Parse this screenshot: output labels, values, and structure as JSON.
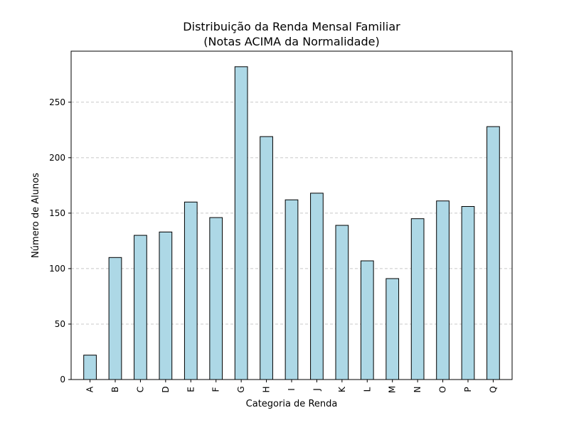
{
  "chart_data": {
    "type": "bar",
    "title": "Distribuição da Renda Mensal Familiar",
    "subtitle": "(Notas ACIMA da Normalidade)",
    "xlabel": "Categoria de Renda",
    "ylabel": "Número de Alunos",
    "categories": [
      "A",
      "B",
      "C",
      "D",
      "E",
      "F",
      "G",
      "H",
      "I",
      "J",
      "K",
      "L",
      "M",
      "N",
      "O",
      "P",
      "Q"
    ],
    "values": [
      22,
      110,
      130,
      133,
      160,
      146,
      282,
      219,
      162,
      168,
      139,
      107,
      91,
      145,
      161,
      156,
      228
    ],
    "ylim": [
      0,
      296
    ],
    "yticks": [
      0,
      50,
      100,
      150,
      200,
      250
    ],
    "grid": "y-dashed",
    "colors": {
      "bar_fill": "#add8e6",
      "bar_edge": "#000000",
      "grid": "#c8c8c8"
    }
  }
}
